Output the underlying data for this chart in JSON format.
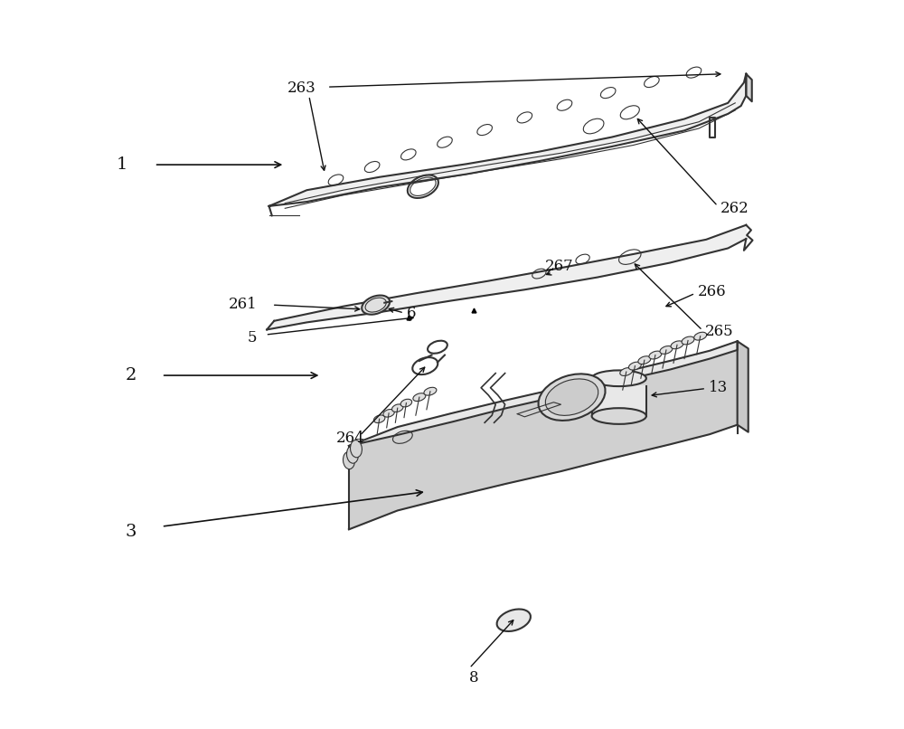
{
  "background": "#ffffff",
  "line_color": "#333333",
  "line_width": 1.5,
  "thin_line": 0.8,
  "figsize": [
    10.0,
    8.06
  ],
  "dpi": 100
}
